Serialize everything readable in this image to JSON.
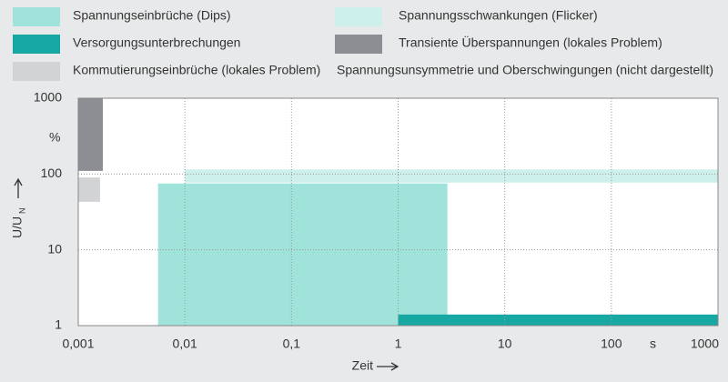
{
  "chart_data": {
    "type": "range-rect",
    "series": [
      {
        "name": "Spannungseinbrüche (Dips)",
        "color": "#9fe3da",
        "xrange": [
          0.0056,
          2.9
        ],
        "yrange": [
          1,
          75
        ]
      },
      {
        "name": "Spannungsschwankungen (Flicker)",
        "color": "#cdf0ed",
        "xrange": [
          0.01,
          1000
        ],
        "yrange": [
          77,
          115
        ]
      },
      {
        "name": "Versorgungsunterbrechungen",
        "color": "#17a8a3",
        "xrange": [
          1,
          1000
        ],
        "yrange": [
          1,
          1.4
        ]
      },
      {
        "name": "Transiente Überspannungen (lokales Problem)",
        "color": "#8c8e93",
        "xrange": [
          0.001,
          0.0017
        ],
        "yrange": [
          110,
          1000
        ]
      },
      {
        "name": "Kommutierungseinbrüche (lokales Problem)",
        "color": "#d2d3d5",
        "xrange": [
          0.001,
          0.0016
        ],
        "yrange": [
          43,
          90
        ]
      }
    ],
    "legend_note": "Spannungsunsymmetrie und Oberschwingungen (nicht dargestellt)",
    "xlabel": "Zeit",
    "x_unit": "s",
    "ylabel": "U/U",
    "ylabel_subscript": "N",
    "y_unit": "%",
    "xscale": "log",
    "yscale": "log",
    "xlim": [
      0.001,
      1000
    ],
    "ylim": [
      1,
      1000
    ],
    "xticks": [
      {
        "value": 0.001,
        "label": "0,001"
      },
      {
        "value": 0.01,
        "label": "0,01"
      },
      {
        "value": 0.1,
        "label": "0,1"
      },
      1,
      10,
      100,
      1000
    ],
    "yticks": [
      1,
      10,
      100,
      1000
    ],
    "grid": true
  }
}
